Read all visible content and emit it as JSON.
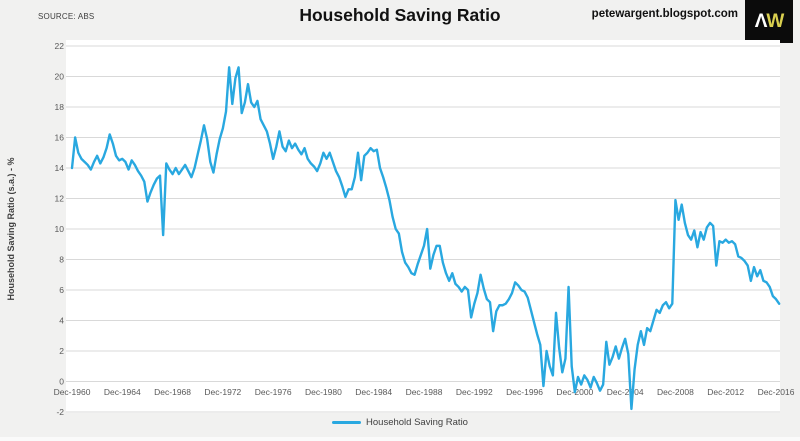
{
  "header": {
    "source": "SOURCE: ABS",
    "title": "Household Saving Ratio",
    "site": "petewargent.blogspot.com",
    "logo_left": "Λ",
    "logo_right": "W"
  },
  "legend": {
    "label": "Household Saving Ratio"
  },
  "colors": {
    "line": "#29a8e0",
    "plot_bg": "#ffffff",
    "page_bg": "#f1f1f0",
    "gridline": "#d9d9d9",
    "tick_text": "#595959",
    "axis_title_text": "#3f3f3f",
    "logo_bg": "#0b0b0b",
    "logo_w": "#d9cf4f"
  },
  "chart_data": {
    "type": "line",
    "title": "Household Saving Ratio",
    "xlabel": "",
    "ylabel": "Household Saving Ratio (s.a.) - %",
    "ylim": [
      -2,
      22
    ],
    "ytick_step": 2,
    "grid": "horizontal",
    "legend_position": "bottom",
    "frequency": "quarterly",
    "x_start": "Dec-1960",
    "x_end": "Mar-2017",
    "x_tick_labels": [
      "Dec-1960",
      "Dec-1964",
      "Dec-1968",
      "Dec-1972",
      "Dec-1976",
      "Dec-1980",
      "Dec-1984",
      "Dec-1988",
      "Dec-1992",
      "Dec-1996",
      "Dec-2000",
      "Dec-2004",
      "Dec-2008",
      "Dec-2012",
      "Dec-2016"
    ],
    "quarters_per_tick": 16,
    "series": [
      {
        "name": "Household Saving Ratio",
        "color": "#29a8e0",
        "values": [
          14.0,
          16.0,
          15.0,
          14.6,
          14.4,
          14.2,
          13.9,
          14.4,
          14.8,
          14.3,
          14.7,
          15.3,
          16.2,
          15.6,
          14.8,
          14.5,
          14.6,
          14.4,
          13.9,
          14.5,
          14.2,
          13.8,
          13.5,
          13.1,
          11.8,
          12.4,
          12.9,
          13.3,
          13.5,
          9.6,
          14.3,
          13.9,
          13.6,
          14.0,
          13.6,
          13.9,
          14.2,
          13.8,
          13.4,
          14.0,
          14.9,
          15.8,
          16.8,
          15.9,
          14.4,
          13.7,
          14.9,
          15.9,
          16.6,
          17.7,
          20.6,
          18.2,
          19.9,
          20.6,
          17.6,
          18.3,
          19.5,
          18.3,
          18.0,
          18.4,
          17.2,
          16.8,
          16.4,
          15.6,
          14.6,
          15.4,
          16.4,
          15.4,
          15.1,
          15.8,
          15.3,
          15.6,
          15.2,
          14.9,
          15.3,
          14.6,
          14.3,
          14.1,
          13.8,
          14.3,
          15.0,
          14.6,
          15.0,
          14.4,
          13.8,
          13.4,
          12.8,
          12.1,
          12.6,
          12.6,
          13.4,
          15.0,
          13.2,
          14.8,
          15.0,
          15.3,
          15.1,
          15.2,
          14.0,
          13.4,
          12.7,
          11.9,
          10.8,
          10.0,
          9.7,
          8.5,
          7.8,
          7.5,
          7.1,
          7.0,
          7.7,
          8.3,
          8.9,
          10.0,
          7.4,
          8.3,
          8.9,
          8.9,
          7.8,
          7.1,
          6.6,
          7.1,
          6.4,
          6.2,
          5.9,
          6.2,
          6.0,
          4.2,
          5.1,
          5.8,
          7.0,
          6.1,
          5.4,
          5.2,
          3.3,
          4.6,
          5.0,
          5.0,
          5.1,
          5.4,
          5.8,
          6.5,
          6.3,
          6.0,
          5.9,
          5.5,
          4.7,
          3.9,
          3.1,
          2.4,
          -0.3,
          2.0,
          1.0,
          0.4,
          4.5,
          2.2,
          0.6,
          1.5,
          6.2,
          1.0,
          -0.7,
          0.3,
          -0.2,
          0.4,
          0.1,
          -0.4,
          0.3,
          -0.1,
          -0.6,
          -0.2,
          2.6,
          1.1,
          1.6,
          2.3,
          1.5,
          2.2,
          2.8,
          1.8,
          -1.8,
          0.8,
          2.4,
          3.3,
          2.4,
          3.5,
          3.3,
          4.0,
          4.7,
          4.5,
          5.0,
          5.2,
          4.8,
          5.1,
          11.9,
          10.6,
          11.6,
          10.4,
          9.6,
          9.3,
          9.9,
          8.8,
          9.8,
          9.3,
          10.1,
          10.4,
          10.2,
          7.6,
          9.2,
          9.1,
          9.3,
          9.1,
          9.2,
          9.0,
          8.2,
          8.1,
          7.9,
          7.6,
          6.6,
          7.5,
          6.9,
          7.3,
          6.6,
          6.5,
          6.2,
          5.6,
          5.4,
          5.1
        ]
      }
    ]
  }
}
